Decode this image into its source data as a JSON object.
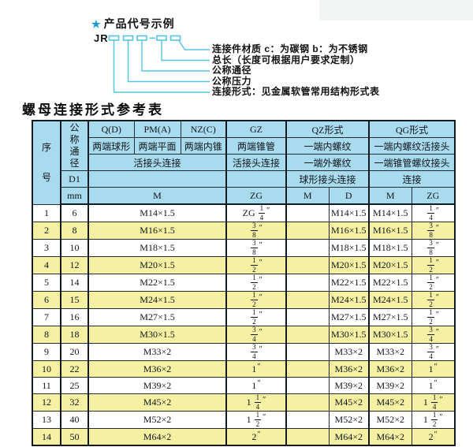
{
  "diagram": {
    "star_icon": "★",
    "title": "产品代号示例",
    "code_prefix": "JR",
    "labels": [
      "连接件材质  c：为碳钢  b：为不锈钢",
      "总长（长度可根据用户要求定制）",
      "公称通径",
      "公称压力",
      "连接形式：见金属软管常用结构形式表"
    ]
  },
  "table": {
    "title": "螺母连接形式参考表",
    "header": {
      "seq_label": "序号",
      "dn_label": "公称通径",
      "d1_label": "D1",
      "unit_label": "mm",
      "groups": [
        "Q(D)",
        "PM(A)",
        "NZ(C)",
        "GZ",
        "QZ形式",
        "QG形式"
      ],
      "ends": [
        "两端球形",
        "两端平面",
        "两端内锥",
        "两端锥管",
        "一端内螺纹",
        "一端内螺纹活接头"
      ],
      "conn_row3": [
        "活接头连接",
        "活接头连接",
        "一端外螺纹",
        "一端锥管螺纹接头"
      ],
      "conn_row4": [
        "球形接头连接",
        "连接"
      ],
      "sub": [
        "M",
        "ZG",
        "M",
        "D",
        "M",
        "ZG"
      ]
    },
    "rows": [
      {
        "seq": "1",
        "dn": "6",
        "m": "M14×1.5",
        "gz": "ZG 1/4",
        "qz_m": "",
        "qz_d": "M14×1.5",
        "qg_m": "M14×1.5",
        "qg_zg": "1/4"
      },
      {
        "seq": "2",
        "dn": "8",
        "m": "M16×1.5",
        "gz": "3/8",
        "qz_m": "",
        "qz_d": "M16×1.5",
        "qg_m": "M16×1.5",
        "qg_zg": "3/8"
      },
      {
        "seq": "3",
        "dn": "10",
        "m": "M18×1.5",
        "gz": "3/8",
        "qz_m": "",
        "qz_d": "M18×1.5",
        "qg_m": "M18×1.5",
        "qg_zg": "3/8"
      },
      {
        "seq": "4",
        "dn": "12",
        "m": "M20×1.5",
        "gz": "1/2",
        "qz_m": "",
        "qz_d": "M20×1.5",
        "qg_m": "M20×1.5",
        "qg_zg": "1/2"
      },
      {
        "seq": "5",
        "dn": "14",
        "m": "M22×1.5",
        "gz": "1/2",
        "qz_m": "",
        "qz_d": "M22×1.5",
        "qg_m": "M22×1.5",
        "qg_zg": "1/2"
      },
      {
        "seq": "6",
        "dn": "15",
        "m": "M24×1.5",
        "gz": "1/2",
        "qz_m": "",
        "qz_d": "M24×1.5",
        "qg_m": "M24×1.5",
        "qg_zg": "1/2"
      },
      {
        "seq": "7",
        "dn": "16",
        "m": "M27×1.5",
        "gz": "1/2",
        "qz_m": "",
        "qz_d": "M27×1.5",
        "qg_m": "M27×1.5",
        "qg_zg": "1/2"
      },
      {
        "seq": "8",
        "dn": "18",
        "m": "M30×1.5",
        "gz": "3/4",
        "qz_m": "",
        "qz_d": "M30×1.5",
        "qg_m": "M30×1.5",
        "qg_zg": "3/4"
      },
      {
        "seq": "9",
        "dn": "20",
        "m": "M33×2",
        "gz": "3/4",
        "qz_m": "",
        "qz_d": "M33×2",
        "qg_m": "M33×2",
        "qg_zg": "3/4"
      },
      {
        "seq": "10",
        "dn": "22",
        "m": "M36×2",
        "gz": "1",
        "qz_m": "",
        "qz_d": "M36×2",
        "qg_m": "M36×2",
        "qg_zg": "1"
      },
      {
        "seq": "11",
        "dn": "25",
        "m": "M39×2",
        "gz": "1",
        "qz_m": "",
        "qz_d": "M39×2",
        "qg_m": "M39×2",
        "qg_zg": "1"
      },
      {
        "seq": "12",
        "dn": "32",
        "m": "M45×2",
        "gz": "1 1/4",
        "qz_m": "",
        "qz_d": "M45×2",
        "qg_m": "M45×2",
        "qg_zg": "1 1/4"
      },
      {
        "seq": "13",
        "dn": "40",
        "m": "M52×2",
        "gz": "1 1/2",
        "qz_m": "",
        "qz_d": "M52×2",
        "qg_m": "M52×2",
        "qg_zg": "1 1/2"
      },
      {
        "seq": "14",
        "dn": "50",
        "m": "M64×2",
        "gz": "2",
        "qz_m": "",
        "qz_d": "M64×2",
        "qg_m": "M64×2",
        "qg_zg": "2"
      }
    ]
  },
  "colors": {
    "header_bg": "#a9dbee",
    "row_alt_bg": "#f6f0a2",
    "line_cyan": "#55c3e5",
    "star_blue": "#1899d6",
    "border": "#141a22"
  }
}
